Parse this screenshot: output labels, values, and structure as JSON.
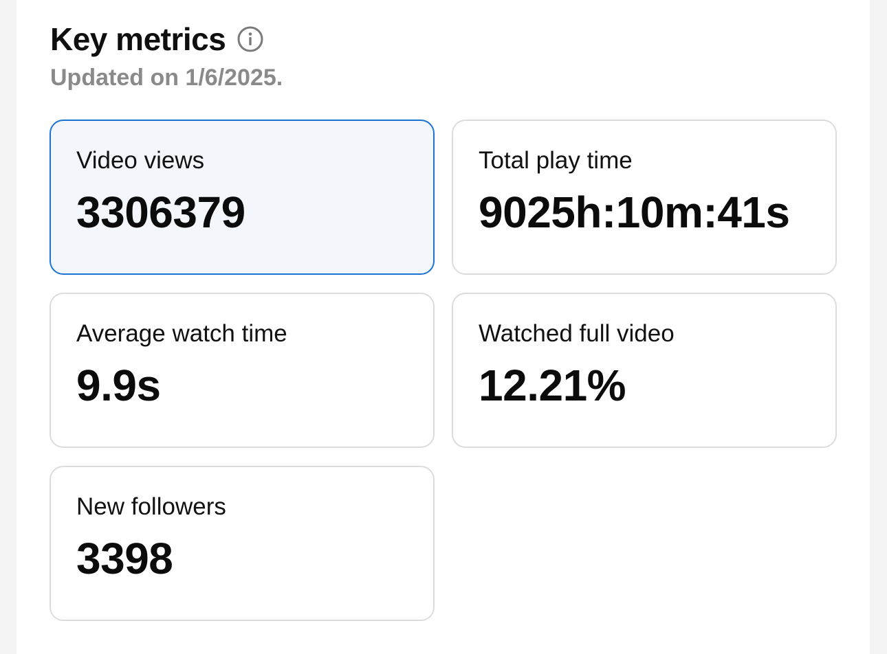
{
  "header": {
    "title": "Key metrics",
    "info_icon": "info-circle-icon",
    "subtitle": "Updated on 1/6/2025."
  },
  "metrics": [
    {
      "label": "Video views",
      "value": "3306379",
      "selected": true
    },
    {
      "label": "Total play time",
      "value": "9025h:10m:41s",
      "selected": false
    },
    {
      "label": "Average watch time",
      "value": "9.9s",
      "selected": false
    },
    {
      "label": "Watched full video",
      "value": "12.21%",
      "selected": false
    },
    {
      "label": "New followers",
      "value": "3398",
      "selected": false
    }
  ],
  "colors": {
    "selected_border": "#1a73d1",
    "selected_background": "#f3f7fc",
    "card_border": "#dcdcdc",
    "subtitle_text": "#8a8a8a"
  }
}
